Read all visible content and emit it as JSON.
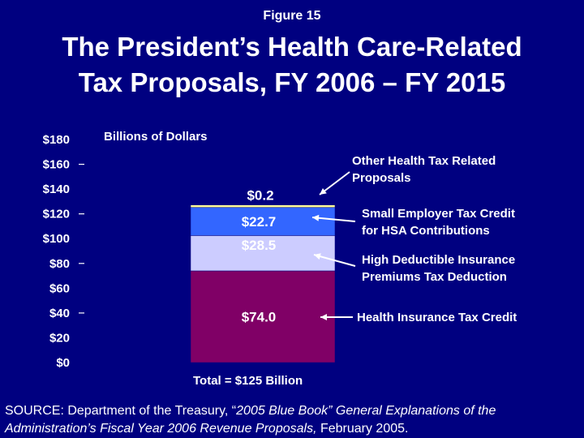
{
  "figure_label": "Figure 15",
  "title_lines": [
    "The President’s Health Care-Related",
    "Tax Proposals, FY 2006 – FY 2015"
  ],
  "colors": {
    "background": "#000080",
    "health_insurance_tax_credit": "#800066",
    "high_deductible": "#CCCCFF",
    "small_employer": "#3366FF",
    "other": "#FFFF99",
    "text": "#FFFFFF"
  },
  "chart_data": {
    "type": "bar",
    "stacked": true,
    "units_label": "Billions of Dollars",
    "ylim": [
      0,
      180
    ],
    "y_ticks": [
      "$0",
      "$20",
      "$40",
      "$60",
      "$80",
      "$100",
      "$120",
      "$140",
      "$160",
      "$180"
    ],
    "y_tick_values": [
      0,
      20,
      40,
      60,
      80,
      100,
      120,
      140,
      160,
      180
    ],
    "series": [
      {
        "name": "Health Insurance Tax Credit",
        "value": 74.0,
        "label": "$74.0",
        "color_key": "health_insurance_tax_credit"
      },
      {
        "name": "High Deductible Insurance Premiums Tax Deduction",
        "value": 28.5,
        "label": "$28.5",
        "color_key": "high_deductible"
      },
      {
        "name": "Small Employer Tax Credit for HSA Contributions",
        "value": 22.7,
        "label": "$22.7",
        "color_key": "small_employer"
      },
      {
        "name": "Other Health Tax Related Proposals",
        "value": 0.2,
        "label": "$0.2",
        "color_key": "other"
      }
    ],
    "annotations": [
      {
        "series": 3,
        "lines": [
          "Other Health Tax Related",
          "Proposals"
        ]
      },
      {
        "series": 2,
        "lines": [
          "Small Employer Tax Credit",
          "for HSA Contributions"
        ]
      },
      {
        "series": 1,
        "lines": [
          "High Deductible Insurance",
          "Premiums Tax Deduction"
        ]
      },
      {
        "series": 0,
        "lines": [
          "Health Insurance Tax Credit"
        ]
      }
    ],
    "total_label": "Total = $125 Billion"
  },
  "source": {
    "prefix": "SOURCE: Department of the Treasury, “",
    "italic1": "2005 Blue Book” General Explanations of the Administration’s Fiscal Year 2006 Revenue Proposals,",
    "suffix": " February 2005."
  }
}
